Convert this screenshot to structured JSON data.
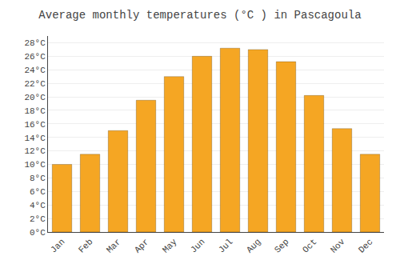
{
  "chart_data": {
    "type": "bar",
    "title": "Average monthly temperatures (°C ) in Pascagoula",
    "categories": [
      "Jan",
      "Feb",
      "Mar",
      "Apr",
      "May",
      "Jun",
      "Jul",
      "Aug",
      "Sep",
      "Oct",
      "Nov",
      "Dec"
    ],
    "values": [
      10.0,
      11.5,
      15.0,
      19.5,
      23.0,
      26.0,
      27.2,
      27.0,
      25.2,
      20.2,
      15.3,
      11.5
    ],
    "color": "#F5A623",
    "ylim": [
      0,
      29
    ],
    "yticks": [
      {
        "value": 0,
        "label": "0°C"
      },
      {
        "value": 2,
        "label": "2°C"
      },
      {
        "value": 4,
        "label": "4°C"
      },
      {
        "value": 6,
        "label": "6°C"
      },
      {
        "value": 8,
        "label": "8°C"
      },
      {
        "value": 10,
        "label": "10°C"
      },
      {
        "value": 12,
        "label": "12°C"
      },
      {
        "value": 14,
        "label": "14°C"
      },
      {
        "value": 16,
        "label": "16°C"
      },
      {
        "value": 18,
        "label": "18°C"
      },
      {
        "value": 20,
        "label": "20°C"
      },
      {
        "value": 22,
        "label": "22°C"
      },
      {
        "value": 24,
        "label": "24°C"
      },
      {
        "value": 26,
        "label": "26°C"
      },
      {
        "value": 28,
        "label": "28°C"
      }
    ],
    "grid": true
  }
}
